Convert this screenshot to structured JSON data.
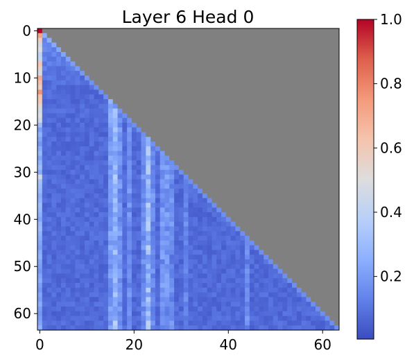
{
  "chart_data": {
    "type": "heatmap",
    "title": "Layer 6 Head 0",
    "xlabel": "",
    "ylabel": "",
    "rows": 64,
    "cols": 64,
    "mask": "upper-triangle",
    "mask_color": "#808080",
    "colormap": "coolwarm",
    "vmin": 0.0,
    "vmax": 1.0,
    "baseline_value": 0.04,
    "x_ticks": [
      0,
      20,
      40,
      60
    ],
    "y_ticks": [
      0,
      10,
      20,
      30,
      40,
      50,
      60
    ],
    "colorbar_ticks": [
      {
        "value": 0.2,
        "label": "0.2"
      },
      {
        "value": 0.4,
        "label": "0.4"
      },
      {
        "value": 0.6,
        "label": "0.6"
      },
      {
        "value": 0.8,
        "label": "0.8"
      },
      {
        "value": 1.0,
        "label": "1.0"
      }
    ],
    "first_column_values": [
      1.0,
      0.72,
      0.58,
      0.46,
      0.5,
      0.4,
      0.42,
      0.62,
      0.55,
      0.48,
      0.7,
      0.64,
      0.58,
      0.76,
      0.62,
      0.6,
      0.54,
      0.46,
      0.5,
      0.44,
      0.3,
      0.2,
      0.26,
      0.22,
      0.18,
      0.24,
      0.28,
      0.22,
      0.26,
      0.3,
      0.24,
      0.46,
      0.32,
      0.3,
      0.28,
      0.24,
      0.26,
      0.3,
      0.28,
      0.25,
      0.22,
      0.28,
      0.3,
      0.26,
      0.24,
      0.22,
      0.2,
      0.24,
      0.26,
      0.22,
      0.2,
      0.18,
      0.22,
      0.24,
      0.2,
      0.18,
      0.22,
      0.2,
      0.24,
      0.2,
      0.18,
      0.2,
      0.22,
      0.26
    ],
    "column_boosts": [
      {
        "col": 15,
        "value": 0.12
      },
      {
        "col": 16,
        "value": 0.2
      },
      {
        "col": 17,
        "value": 0.1
      },
      {
        "col": 19,
        "value": 0.08
      },
      {
        "col": 22,
        "value": 0.08
      },
      {
        "col": 23,
        "value": 0.22
      },
      {
        "col": 24,
        "value": 0.08
      },
      {
        "col": 26,
        "value": 0.1
      },
      {
        "col": 27,
        "value": 0.1
      },
      {
        "col": 28,
        "value": 0.08
      },
      {
        "col": 31,
        "value": 0.06
      },
      {
        "col": 44,
        "value": 0.08
      }
    ],
    "diagonal_value": 0.16
  }
}
